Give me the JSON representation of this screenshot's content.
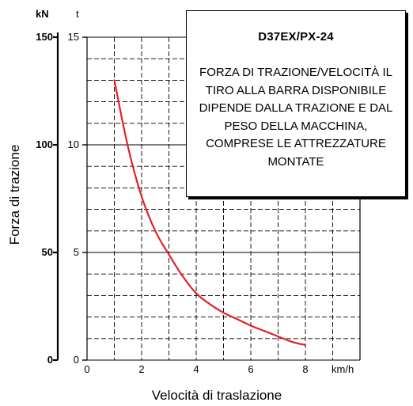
{
  "chart_data": {
    "type": "line",
    "xlabel": "Velocità di traslazione",
    "x_unit": "km/h",
    "xlim": [
      0,
      10
    ],
    "x_ticks": [
      0,
      2,
      4,
      6,
      8
    ],
    "ylabel": "Forza di trazione",
    "y_unit_primary": "kN",
    "y_unit_secondary": "t",
    "ylim_t": [
      0,
      15
    ],
    "ylim_kN": [
      0,
      150
    ],
    "y_ticks_t": [
      0,
      5,
      10,
      15
    ],
    "y_ticks_kN": [
      0,
      50,
      100,
      150
    ],
    "grid": true,
    "series": [
      {
        "color": "#e0222a",
        "x": [
          1.0,
          1.5,
          2.0,
          2.5,
          3.0,
          3.5,
          4.0,
          4.5,
          5.0,
          5.5,
          6.0,
          6.5,
          7.0,
          7.5,
          8.0
        ],
        "y": [
          13.0,
          9.9,
          7.6,
          6.0,
          4.9,
          3.9,
          3.1,
          2.6,
          2.2,
          1.9,
          1.6,
          1.35,
          1.1,
          0.85,
          0.7
        ]
      }
    ]
  },
  "note": {
    "title": "D37EX/PX-24",
    "text": "FORZA DI TRAZIONE/VELOCITÀ IL TIRO ALLA BARRA DISPONIBILE DIPENDE DALLA TRAZIONE E DAL PESO DELLA MACCHINA, COMPRESE LE ATTREZZATURE MONTATE"
  }
}
